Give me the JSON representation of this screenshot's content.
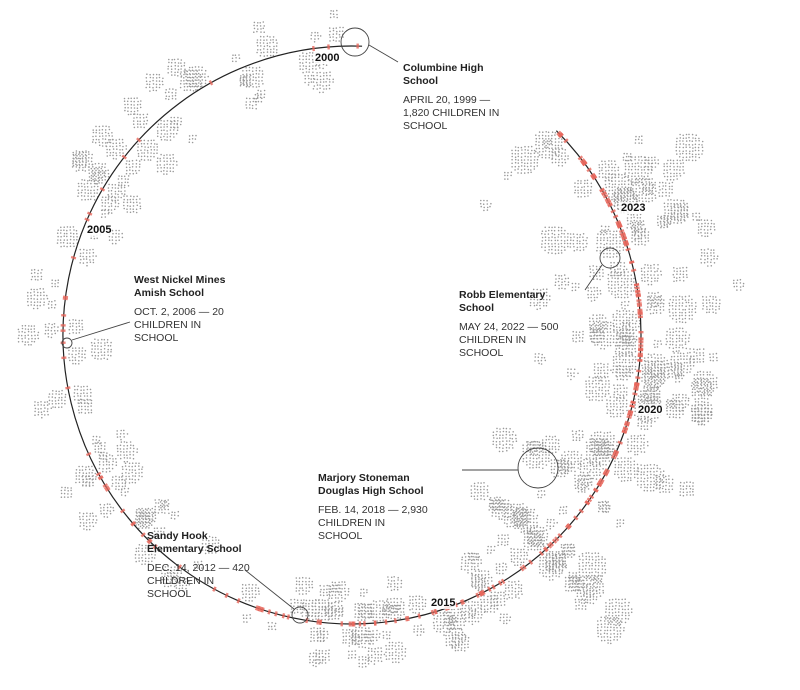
{
  "year_labels": [
    "2000",
    "2005",
    "2015",
    "2020",
    "2023"
  ],
  "annotations": [
    {
      "name": "Columbine High School",
      "detail": "APRIL 20, 1999 — 1,820 CHILDREN IN SCHOOL"
    },
    {
      "name": "West Nickel Mines Amish School",
      "detail": "OCT. 2, 2006 — 20 CHILDREN IN SCHOOL"
    },
    {
      "name": "Robb Elementary School",
      "detail": "MAY 24, 2022 — 500 CHILDREN IN SCHOOL"
    },
    {
      "name": "Marjory Stoneman Douglas High School",
      "detail": "FEB. 14, 2018 — 2,930 CHILDREN IN SCHOOL"
    },
    {
      "name": "Sandy Hook Elementary School",
      "detail": "DEC. 14, 2012 — 420 CHILDREN IN SCHOOL"
    }
  ]
}
